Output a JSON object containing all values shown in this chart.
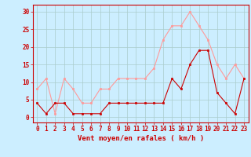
{
  "x": [
    0,
    1,
    2,
    3,
    4,
    5,
    6,
    7,
    8,
    9,
    10,
    11,
    12,
    13,
    14,
    15,
    16,
    17,
    18,
    19,
    20,
    21,
    22,
    23
  ],
  "rafales": [
    8,
    11,
    1,
    11,
    8,
    4,
    4,
    8,
    8,
    11,
    11,
    11,
    11,
    14,
    22,
    26,
    26,
    30,
    26,
    22,
    15,
    11,
    15,
    11
  ],
  "moyen": [
    4,
    1,
    4,
    4,
    1,
    1,
    1,
    1,
    4,
    4,
    4,
    4,
    4,
    4,
    4,
    11,
    8,
    15,
    19,
    19,
    7,
    4,
    1,
    11
  ],
  "bg_color": "#cceeff",
  "grid_color": "#aacccc",
  "line_rafales_color": "#ff9999",
  "line_moyen_color": "#cc0000",
  "xlabel": "Vent moyen/en rafales ( km/h )",
  "yticks": [
    0,
    5,
    10,
    15,
    20,
    25,
    30
  ],
  "ylim": [
    -1.5,
    32
  ],
  "xlim": [
    -0.5,
    23.5
  ],
  "axis_label_fontsize": 6.5,
  "tick_fontsize": 5.5
}
